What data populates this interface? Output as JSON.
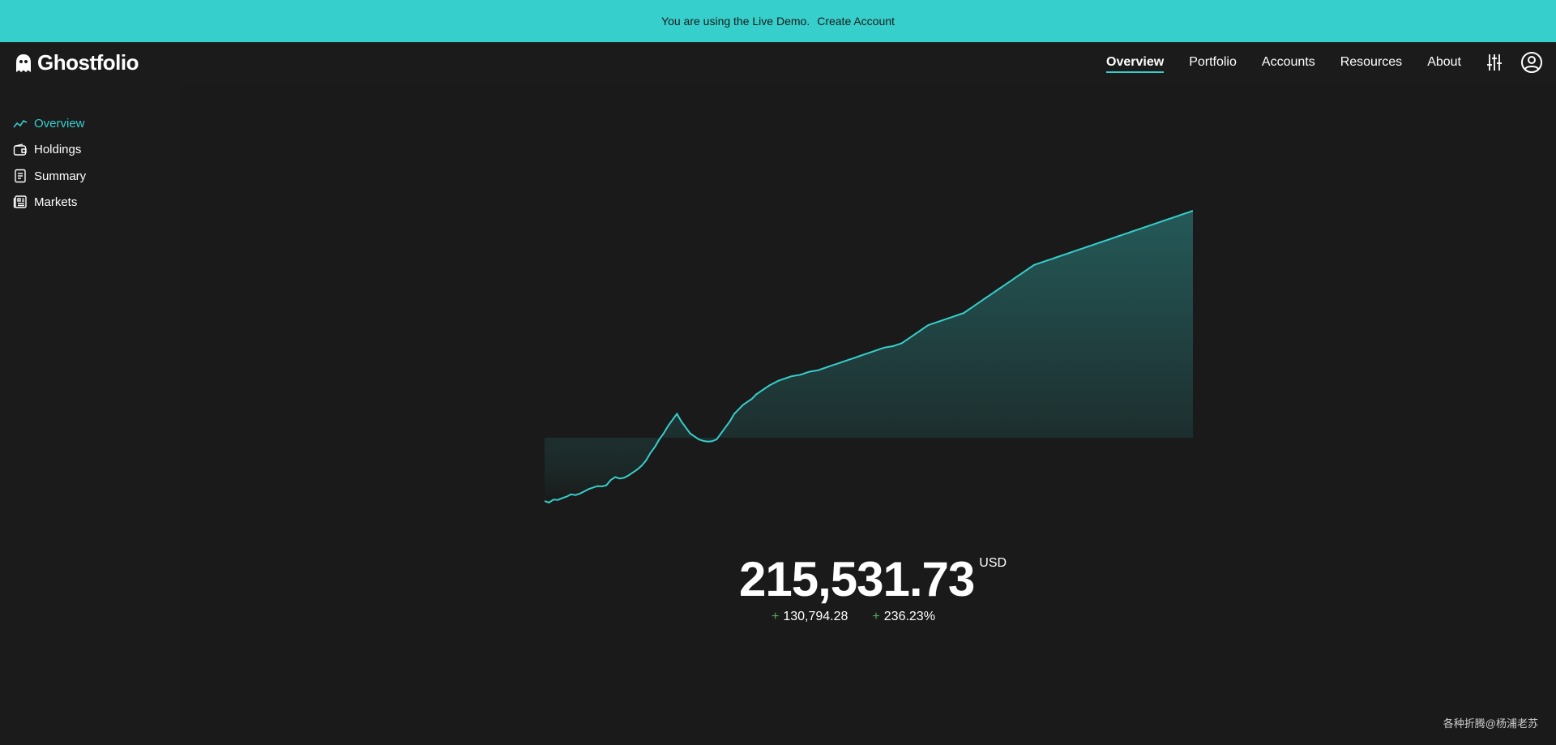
{
  "banner": {
    "text": "You are using the Live Demo.",
    "link": "Create Account"
  },
  "header": {
    "logo": "Ghostfolio",
    "nav": [
      "Overview",
      "Portfolio",
      "Accounts",
      "Resources",
      "About"
    ]
  },
  "sidebar": {
    "items": [
      {
        "label": "Overview",
        "icon": "trend-icon"
      },
      {
        "label": "Holdings",
        "icon": "wallet-icon"
      },
      {
        "label": "Summary",
        "icon": "document-icon"
      },
      {
        "label": "Markets",
        "icon": "newspaper-icon"
      }
    ]
  },
  "performance": {
    "value": "215,531.73",
    "currency": "USD",
    "change_abs": "130,794.28",
    "change_pct": "236.23%",
    "sign": "+"
  },
  "watermark": "各种折腾@杨浦老苏",
  "colors": {
    "accent": "#36cfcc",
    "positive": "#4caf50",
    "background": "#1b1b1b"
  },
  "chart_data": {
    "type": "area",
    "title": "",
    "xlabel": "",
    "ylabel": "",
    "grid": false,
    "values": [
      150,
      140,
      160,
      158,
      170,
      180,
      195,
      190,
      200,
      215,
      230,
      240,
      250,
      248,
      255,
      290,
      310,
      300,
      305,
      320,
      340,
      360,
      385,
      420,
      470,
      510,
      560,
      600,
      650,
      690,
      730,
      680,
      640,
      600,
      580,
      560,
      550,
      545,
      548,
      560,
      600,
      640,
      680,
      730,
      760,
      790,
      810,
      830,
      860,
      880,
      900,
      920,
      935,
      950,
      960,
      970,
      980,
      985,
      990,
      1000,
      1010,
      1015,
      1020,
      1030,
      1040,
      1050,
      1060,
      1070,
      1080,
      1090,
      1100,
      1110,
      1120,
      1130,
      1140,
      1150,
      1160,
      1170,
      1175,
      1180,
      1190,
      1200,
      1220,
      1240,
      1260,
      1280,
      1300,
      1320,
      1330,
      1340,
      1350,
      1360,
      1370,
      1380,
      1390,
      1400,
      1420,
      1440,
      1460,
      1480,
      1500,
      1520,
      1540,
      1560,
      1580,
      1600,
      1620,
      1640,
      1660,
      1680,
      1700,
      1720,
      1730,
      1740,
      1750,
      1760,
      1770,
      1780,
      1790,
      1800,
      1810,
      1820,
      1830,
      1840,
      1850,
      1860,
      1870,
      1880,
      1890,
      1900,
      1910,
      1920,
      1930,
      1940,
      1950,
      1960,
      1970,
      1980,
      1990,
      2000,
      2010,
      2020,
      2030,
      2040,
      2050,
      2060,
      2070,
      2080
    ]
  }
}
